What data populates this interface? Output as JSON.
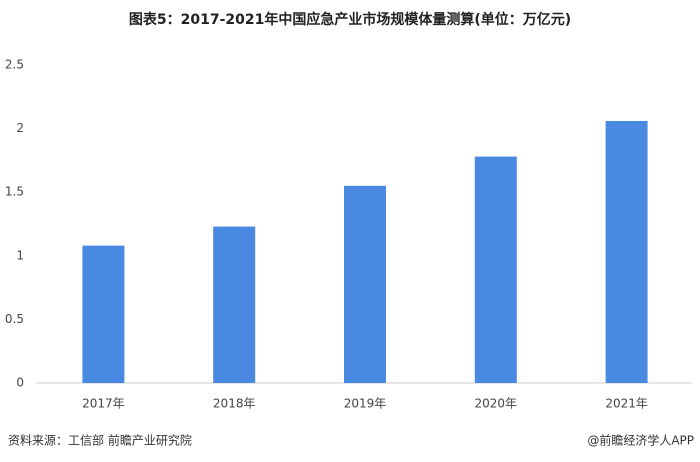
{
  "chart_data": {
    "type": "bar",
    "title": "图表5：2017-2021年中国应急产业市场规模体量测算(单位：万亿元)",
    "categories": [
      "2017年",
      "2018年",
      "2019年",
      "2020年",
      "2021年"
    ],
    "values": [
      1.08,
      1.23,
      1.55,
      1.78,
      2.06
    ],
    "color": "#4a89e2",
    "ylim": [
      0,
      2.5
    ],
    "yticks": [
      0,
      0.5,
      1,
      1.5,
      2,
      2.5
    ],
    "grid": false,
    "source": "资料来源：工信部 前瞻产业研究院",
    "credit": "@前瞻经济学人APP"
  }
}
